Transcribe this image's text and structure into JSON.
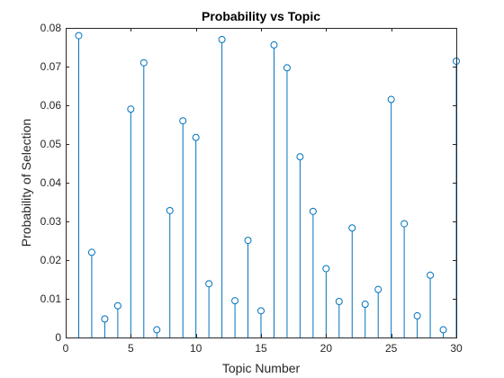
{
  "chart_data": {
    "type": "stem",
    "title": "Probability vs Topic",
    "xlabel": "Topic Number",
    "ylabel": "Probability of Selection",
    "xlim": [
      0,
      30
    ],
    "ylim": [
      0,
      0.08
    ],
    "xticks": [
      0,
      5,
      10,
      15,
      20,
      25,
      30
    ],
    "yticks": [
      0,
      0.01,
      0.02,
      0.03,
      0.04,
      0.05,
      0.06,
      0.07,
      0.08
    ],
    "ytick_labels": [
      "0",
      "0.01",
      "0.02",
      "0.03",
      "0.04",
      "0.05",
      "0.06",
      "0.07",
      "0.08"
    ],
    "grid": false,
    "series_color": "#0072BD",
    "x": [
      1,
      2,
      3,
      4,
      5,
      6,
      7,
      8,
      9,
      10,
      11,
      12,
      13,
      14,
      15,
      16,
      17,
      18,
      19,
      20,
      21,
      22,
      23,
      24,
      25,
      26,
      27,
      28,
      29,
      30
    ],
    "y": [
      0.078,
      0.022,
      0.0048,
      0.0082,
      0.059,
      0.071,
      0.002,
      0.0328,
      0.056,
      0.0517,
      0.0139,
      0.077,
      0.0095,
      0.0251,
      0.0069,
      0.0756,
      0.0697,
      0.0467,
      0.0326,
      0.0178,
      0.0093,
      0.0283,
      0.0086,
      0.0124,
      0.0615,
      0.0294,
      0.0056,
      0.0161,
      0.002,
      0.0714
    ]
  }
}
